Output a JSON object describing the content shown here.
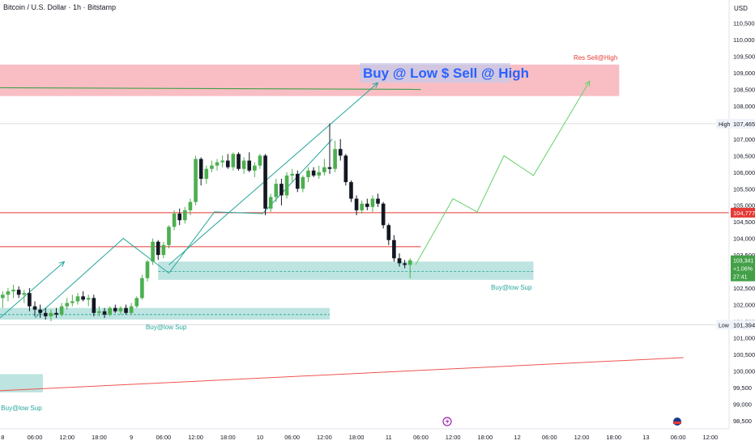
{
  "header": {
    "symbol_line": "Bitcoin / U.S. Dollar · 1h · Bitstamp",
    "currency": "USD"
  },
  "colors": {
    "up": "#4caf50",
    "down": "#131722",
    "accent_green": "#26a69a",
    "zone_green": "#b2dfdb",
    "zone_red": "#f7b7be",
    "red_line": "#e53935",
    "banner_text": "#2962ff"
  },
  "banner": {
    "text": "Buy @ Low $ Sell @ High"
  },
  "labels": {
    "res_sell": "Res Sell@High",
    "buy_sup_1": "Buy@low Sup",
    "buy_sup_2": "Buy@low Sup",
    "buy_sup_3": "Buy@low Sup"
  },
  "chart_data": {
    "type": "candlestick",
    "title": "",
    "y_ticks": [
      98500,
      99000,
      99500,
      100000,
      100500,
      101000,
      101500,
      102000,
      102500,
      103000,
      103500,
      104000,
      104500,
      105000,
      105500,
      106000,
      106500,
      107000,
      107500,
      108000,
      108500,
      109000,
      109500,
      110000,
      110500
    ],
    "y_tick_labels": [
      "98,500",
      "99,000",
      "99,500",
      "100,000",
      "100,500",
      "101,000",
      "101,500",
      "102,000",
      "102,500",
      "103,000",
      "103,500",
      "104,000",
      "104,500",
      "105,000",
      "105,500",
      "106,000",
      "106,500",
      "107,000",
      "107,500",
      "108,000",
      "108,500",
      "109,000",
      "109,500",
      "110,000",
      "110,500"
    ],
    "ylim": [
      98250,
      111200
    ],
    "x_ticks": [
      {
        "t": 0,
        "label": "8"
      },
      {
        "t": 6,
        "label": "06:00"
      },
      {
        "t": 12,
        "label": "12:00"
      },
      {
        "t": 18,
        "label": "18:00"
      },
      {
        "t": 24,
        "label": "9"
      },
      {
        "t": 30,
        "label": "06:00"
      },
      {
        "t": 36,
        "label": "12:00"
      },
      {
        "t": 42,
        "label": "18:00"
      },
      {
        "t": 48,
        "label": "10"
      },
      {
        "t": 54,
        "label": "06:00"
      },
      {
        "t": 60,
        "label": "12:00"
      },
      {
        "t": 66,
        "label": "18:00"
      },
      {
        "t": 72,
        "label": "11"
      },
      {
        "t": 78,
        "label": "06:00"
      },
      {
        "t": 84,
        "label": "12:00"
      },
      {
        "t": 90,
        "label": "18:00"
      },
      {
        "t": 96,
        "label": "12"
      },
      {
        "t": 102,
        "label": "06:00"
      },
      {
        "t": 108,
        "label": "12:00"
      },
      {
        "t": 114,
        "label": "18:00"
      },
      {
        "t": 120,
        "label": "13"
      },
      {
        "t": 126,
        "label": "06:00"
      },
      {
        "t": 132,
        "label": "12:00"
      }
    ],
    "xlim": [
      -0.5,
      135.5
    ],
    "candles": [
      {
        "o": 102200,
        "h": 102400,
        "l": 101900,
        "c": 102300
      },
      {
        "o": 102300,
        "h": 102500,
        "l": 102100,
        "c": 102400
      },
      {
        "o": 102400,
        "h": 102600,
        "l": 102200,
        "c": 102450
      },
      {
        "o": 102450,
        "h": 102550,
        "l": 102200,
        "c": 102300
      },
      {
        "o": 102300,
        "h": 102450,
        "l": 102050,
        "c": 102350
      },
      {
        "o": 102350,
        "h": 102500,
        "l": 101800,
        "c": 101950
      },
      {
        "o": 101950,
        "h": 102100,
        "l": 101650,
        "c": 101850
      },
      {
        "o": 101850,
        "h": 102000,
        "l": 101600,
        "c": 101750
      },
      {
        "o": 101750,
        "h": 101900,
        "l": 101550,
        "c": 101650
      },
      {
        "o": 101650,
        "h": 101850,
        "l": 101500,
        "c": 101750
      },
      {
        "o": 101750,
        "h": 101900,
        "l": 101600,
        "c": 101700
      },
      {
        "o": 101700,
        "h": 102050,
        "l": 101650,
        "c": 101950
      },
      {
        "o": 101950,
        "h": 102200,
        "l": 101850,
        "c": 102050
      },
      {
        "o": 102050,
        "h": 102300,
        "l": 101950,
        "c": 102100
      },
      {
        "o": 102100,
        "h": 102350,
        "l": 102000,
        "c": 102250
      },
      {
        "o": 102250,
        "h": 102400,
        "l": 102100,
        "c": 102150
      },
      {
        "o": 102150,
        "h": 102300,
        "l": 101950,
        "c": 102200
      },
      {
        "o": 102200,
        "h": 102300,
        "l": 101650,
        "c": 101750
      },
      {
        "o": 101750,
        "h": 101950,
        "l": 101650,
        "c": 101800
      },
      {
        "o": 101800,
        "h": 101900,
        "l": 101600,
        "c": 101700
      },
      {
        "o": 101700,
        "h": 101950,
        "l": 101650,
        "c": 101900
      },
      {
        "o": 101900,
        "h": 102000,
        "l": 101750,
        "c": 101800
      },
      {
        "o": 101800,
        "h": 101950,
        "l": 101700,
        "c": 101900
      },
      {
        "o": 101900,
        "h": 102000,
        "l": 101700,
        "c": 101750
      },
      {
        "o": 101750,
        "h": 102050,
        "l": 101700,
        "c": 101950
      },
      {
        "o": 101950,
        "h": 102250,
        "l": 101900,
        "c": 102200
      },
      {
        "o": 102200,
        "h": 102900,
        "l": 102150,
        "c": 102800
      },
      {
        "o": 102800,
        "h": 103350,
        "l": 102700,
        "c": 103300
      },
      {
        "o": 103300,
        "h": 104000,
        "l": 103200,
        "c": 103900
      },
      {
        "o": 103900,
        "h": 103950,
        "l": 103350,
        "c": 103500
      },
      {
        "o": 103500,
        "h": 103900,
        "l": 103400,
        "c": 103800
      },
      {
        "o": 103800,
        "h": 104400,
        "l": 103700,
        "c": 104350
      },
      {
        "o": 104350,
        "h": 104850,
        "l": 104250,
        "c": 104750
      },
      {
        "o": 104750,
        "h": 104900,
        "l": 104400,
        "c": 104550
      },
      {
        "o": 104550,
        "h": 104950,
        "l": 104450,
        "c": 104850
      },
      {
        "o": 104850,
        "h": 105200,
        "l": 104700,
        "c": 105100
      },
      {
        "o": 105100,
        "h": 106500,
        "l": 105000,
        "c": 106400
      },
      {
        "o": 106400,
        "h": 106450,
        "l": 105600,
        "c": 105800
      },
      {
        "o": 105800,
        "h": 106200,
        "l": 105650,
        "c": 106100
      },
      {
        "o": 106100,
        "h": 106350,
        "l": 106000,
        "c": 106200
      },
      {
        "o": 106200,
        "h": 106400,
        "l": 106050,
        "c": 106300
      },
      {
        "o": 106300,
        "h": 106500,
        "l": 106150,
        "c": 106350
      },
      {
        "o": 106350,
        "h": 106550,
        "l": 106100,
        "c": 106150
      },
      {
        "o": 106150,
        "h": 106600,
        "l": 106050,
        "c": 106550
      },
      {
        "o": 106550,
        "h": 106600,
        "l": 106050,
        "c": 106100
      },
      {
        "o": 106100,
        "h": 106450,
        "l": 105950,
        "c": 106350
      },
      {
        "o": 106350,
        "h": 106600,
        "l": 106000,
        "c": 106050
      },
      {
        "o": 106050,
        "h": 106300,
        "l": 105850,
        "c": 106200
      },
      {
        "o": 106200,
        "h": 106550,
        "l": 106100,
        "c": 106500
      },
      {
        "o": 106500,
        "h": 106550,
        "l": 104700,
        "c": 104900
      },
      {
        "o": 104900,
        "h": 105350,
        "l": 104800,
        "c": 105250
      },
      {
        "o": 105250,
        "h": 105800,
        "l": 105100,
        "c": 105650
      },
      {
        "o": 105650,
        "h": 105800,
        "l": 105000,
        "c": 105300
      },
      {
        "o": 105300,
        "h": 106000,
        "l": 105200,
        "c": 105900
      },
      {
        "o": 105900,
        "h": 106100,
        "l": 105700,
        "c": 105950
      },
      {
        "o": 105950,
        "h": 106050,
        "l": 105400,
        "c": 105500
      },
      {
        "o": 105500,
        "h": 105900,
        "l": 105400,
        "c": 105850
      },
      {
        "o": 105850,
        "h": 106150,
        "l": 105700,
        "c": 106050
      },
      {
        "o": 106050,
        "h": 106150,
        "l": 105850,
        "c": 105900
      },
      {
        "o": 105900,
        "h": 106200,
        "l": 105800,
        "c": 106000
      },
      {
        "o": 106000,
        "h": 106400,
        "l": 105900,
        "c": 106150
      },
      {
        "o": 106150,
        "h": 107470,
        "l": 105950,
        "c": 106100
      },
      {
        "o": 106100,
        "h": 106950,
        "l": 106000,
        "c": 106700
      },
      {
        "o": 106700,
        "h": 107000,
        "l": 106350,
        "c": 106500
      },
      {
        "o": 106500,
        "h": 106550,
        "l": 105600,
        "c": 105700
      },
      {
        "o": 105700,
        "h": 105750,
        "l": 105100,
        "c": 105200
      },
      {
        "o": 105200,
        "h": 105300,
        "l": 104700,
        "c": 104850
      },
      {
        "o": 104850,
        "h": 105150,
        "l": 104750,
        "c": 105050
      },
      {
        "o": 105050,
        "h": 105200,
        "l": 104850,
        "c": 104950
      },
      {
        "o": 104950,
        "h": 105300,
        "l": 104800,
        "c": 105200
      },
      {
        "o": 105200,
        "h": 105350,
        "l": 104950,
        "c": 105050
      },
      {
        "o": 105050,
        "h": 105100,
        "l": 104300,
        "c": 104400
      },
      {
        "o": 104400,
        "h": 104450,
        "l": 103800,
        "c": 103950
      },
      {
        "o": 103950,
        "h": 104100,
        "l": 103300,
        "c": 103400
      },
      {
        "o": 103400,
        "h": 103550,
        "l": 103150,
        "c": 103250
      },
      {
        "o": 103250,
        "h": 103350,
        "l": 103100,
        "c": 103200
      },
      {
        "o": 103200,
        "h": 103400,
        "l": 102800,
        "c": 103341
      }
    ],
    "levels": {
      "high": {
        "label": "High",
        "value": 107465,
        "text": "107,465"
      },
      "low": {
        "label": "Low",
        "value": 101394,
        "text": "101,394"
      },
      "red_level": {
        "value": 104777,
        "text": "104,777"
      },
      "last_price": {
        "value": 103341,
        "text": "103,341",
        "change": "+1.06%",
        "countdown": "27:41"
      }
    },
    "zones": [
      {
        "name": "resistance-zone",
        "kind": "red",
        "t0": -0.5,
        "t1": 115,
        "y0": 108300,
        "y1": 109250
      },
      {
        "name": "support-zone-1",
        "kind": "green",
        "t0": -0.5,
        "t1": 61,
        "y0": 101550,
        "y1": 101900
      },
      {
        "name": "support-zone-2",
        "kind": "green",
        "t0": 29,
        "t1": 99,
        "y0": 102750,
        "y1": 103300
      },
      {
        "name": "support-zone-3",
        "kind": "green",
        "t0": -0.5,
        "t1": 7.5,
        "y0": 99350,
        "y1": 99900
      }
    ],
    "projection_path": [
      [
        77,
        103200
      ],
      [
        84,
        105200
      ],
      [
        88.5,
        104800
      ],
      [
        93.5,
        106500
      ],
      [
        99,
        105900
      ],
      [
        109.5,
        108750
      ]
    ],
    "zigzag_path": [
      [
        6,
        101600
      ],
      [
        22.5,
        104000
      ],
      [
        31,
        102950
      ],
      [
        39.5,
        104800
      ],
      [
        48.5,
        104750
      ],
      [
        61.5,
        107000
      ]
    ],
    "diagonal_up_paths": [
      [
        [
          -0.5,
          101600
        ],
        [
          11.5,
          103300
        ]
      ],
      [
        [
          31,
          103200
        ],
        [
          70,
          108700
        ]
      ]
    ],
    "green_trend_line": [
      [
        -0.5,
        108550
      ],
      [
        78,
        108500
      ]
    ],
    "red_trend_line": [
      [
        -0.5,
        99400
      ],
      [
        127,
        100400
      ]
    ],
    "red_horizontal_lines": [
      104777,
      103750
    ],
    "dashed_lines": [
      {
        "t0": -0.5,
        "t1": 61,
        "y": 101700
      },
      {
        "t0": 29,
        "t1": 99,
        "y": 103000
      }
    ]
  }
}
